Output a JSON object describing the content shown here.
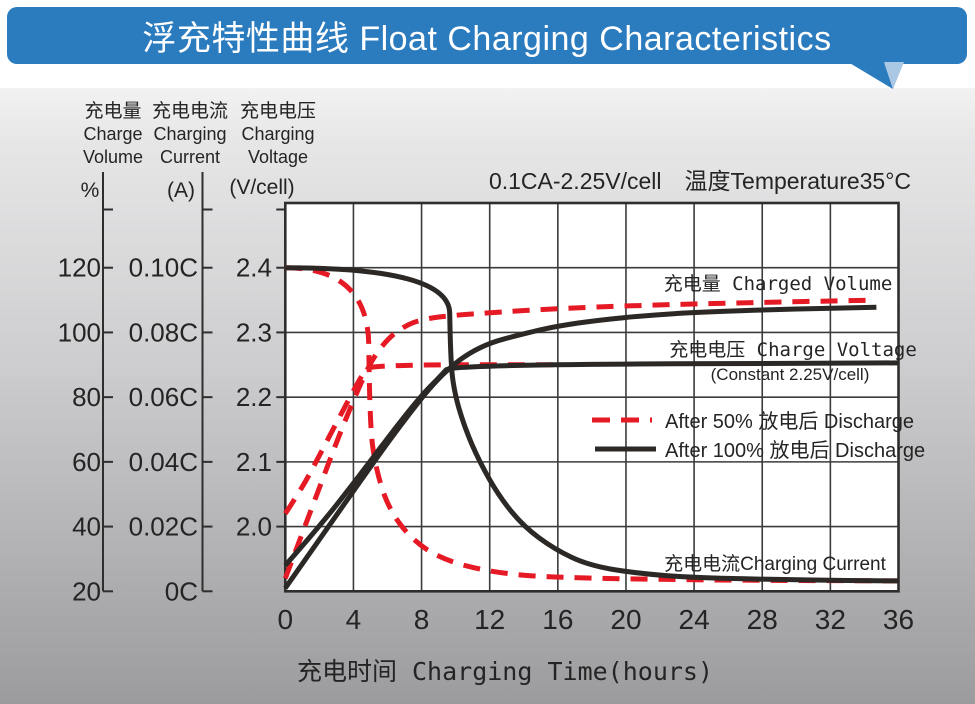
{
  "banner": {
    "title": "浮充特性曲线 Float Charging Characteristics"
  },
  "chart_data": {
    "type": "line",
    "condition": "0.1CA-2.25V/cell　温度Temperature35°C",
    "x_title": "充电时间 Charging Time(hours)",
    "x_ticks": [
      "0",
      "4",
      "8",
      "12",
      "16",
      "20",
      "24",
      "28",
      "32",
      "36"
    ],
    "x_range_hours": [
      0,
      36
    ],
    "axes_headers": [
      {
        "cn": "充电量",
        "en": [
          "Charge",
          "Volume"
        ],
        "unit": "%"
      },
      {
        "cn": "充电电流",
        "en": [
          "Charging",
          "Current"
        ],
        "unit": "(A)"
      },
      {
        "cn": "充电电压",
        "en": [
          "Charging",
          "Voltage"
        ],
        "unit": "(V/cell)"
      }
    ],
    "y_ticks": {
      "volume": [
        "120",
        "100",
        "80",
        "60",
        "40",
        "20"
      ],
      "current": [
        "0.10C",
        "0.08C",
        "0.06C",
        "0.04C",
        "0.02C",
        "0C"
      ],
      "voltage": [
        "2.4",
        "2.3",
        "2.2",
        "2.1",
        "2.0"
      ]
    },
    "y_axis_ranges": {
      "volume_pct": [
        20,
        140
      ],
      "current_C": [
        0,
        0.12
      ],
      "voltage_V": [
        2.0,
        2.4
      ]
    },
    "colors": {
      "red": "#e51a25",
      "black": "#2b2826",
      "grid": "#3b3b3b",
      "banner_blue": "#2b7bbf",
      "tail_light": "#aac7e4"
    },
    "annotations": {
      "charged_volume": "充电量 Charged Volume",
      "charge_voltage": "充电电压 Charge Voltage",
      "constant": "(Constant 2.25V/cell)",
      "charging_current": "充电电流Charging Current"
    },
    "legend": [
      {
        "label": "After 50% 放电后 Discharge",
        "style": "red-dashed"
      },
      {
        "label": "After 100% 放电后 Discharge",
        "style": "black-solid"
      }
    ],
    "series": [
      {
        "key": "charged-volume-50",
        "name": "Charged Volume after 50% discharge",
        "unit": "pct",
        "style": "red-dashed",
        "points": [
          [
            0,
            24
          ],
          [
            1,
            38
          ],
          [
            2,
            52
          ],
          [
            3,
            66
          ],
          [
            4,
            79
          ],
          [
            5,
            91
          ],
          [
            6,
            98
          ],
          [
            7,
            102
          ],
          [
            8,
            104
          ],
          [
            9.6,
            105.2
          ],
          [
            12.6,
            106.3
          ],
          [
            16,
            107.4
          ],
          [
            21,
            108.4
          ],
          [
            27,
            109.2
          ],
          [
            34.7,
            110
          ]
        ]
      },
      {
        "key": "charge-voltage-50",
        "name": "Charge Voltage after 50% discharge",
        "unit": "V",
        "style": "red-dashed",
        "points": [
          [
            0,
            2.02
          ],
          [
            1,
            2.06
          ],
          [
            2,
            2.11
          ],
          [
            3,
            2.16
          ],
          [
            4,
            2.21
          ],
          [
            4.6,
            2.238
          ],
          [
            4.9,
            2.25
          ],
          [
            16,
            2.25
          ]
        ]
      },
      {
        "key": "charging-current-50",
        "name": "Charging Current after 50% discharge",
        "unit": "C",
        "style": "red-dashed",
        "points": [
          [
            0,
            0.1
          ],
          [
            4.85,
            0.1
          ],
          [
            4.95,
            0.052
          ],
          [
            5.3,
            0.038
          ],
          [
            6.1,
            0.025
          ],
          [
            7.6,
            0.015
          ],
          [
            9.6,
            0.009
          ],
          [
            12.6,
            0.0055
          ],
          [
            16,
            0.0042
          ],
          [
            24,
            0.0035
          ],
          [
            36,
            0.0032
          ]
        ]
      },
      {
        "key": "charged-volume-100",
        "name": "Charged Volume after 100% discharge",
        "unit": "pct",
        "style": "black-solid",
        "points": [
          [
            0,
            21
          ],
          [
            2,
            36
          ],
          [
            4.4,
            54
          ],
          [
            6.7,
            71
          ],
          [
            9.1,
            87
          ],
          [
            11.4,
            96
          ],
          [
            14.3,
            100
          ],
          [
            16,
            102
          ],
          [
            18.4,
            103.8
          ],
          [
            21.3,
            105.3
          ],
          [
            24.3,
            106.3
          ],
          [
            29.5,
            107.2
          ],
          [
            34.7,
            107.8
          ]
        ]
      },
      {
        "key": "charge-voltage-100",
        "name": "Charge Voltage after 100% discharge",
        "unit": "V",
        "style": "black-solid",
        "points": [
          [
            0,
            1.94
          ],
          [
            2,
            2.0
          ],
          [
            4.1,
            2.07
          ],
          [
            6.1,
            2.14
          ],
          [
            7.9,
            2.2
          ],
          [
            9.2,
            2.235
          ],
          [
            9.7,
            2.25
          ],
          [
            36,
            2.253
          ]
        ]
      },
      {
        "key": "charging-current-100",
        "name": "Charging Current after 100% discharge",
        "unit": "C",
        "style": "black-solid",
        "points": [
          [
            0,
            0.1
          ],
          [
            9.6,
            0.1
          ],
          [
            9.7,
            0.072
          ],
          [
            9.9,
            0.062
          ],
          [
            10.5,
            0.051
          ],
          [
            11.4,
            0.04
          ],
          [
            12.6,
            0.029
          ],
          [
            14,
            0.02
          ],
          [
            15.8,
            0.013
          ],
          [
            17.8,
            0.008
          ],
          [
            20.7,
            0.0055
          ],
          [
            24,
            0.0042
          ],
          [
            30,
            0.0035
          ],
          [
            36,
            0.0032
          ]
        ]
      }
    ]
  }
}
